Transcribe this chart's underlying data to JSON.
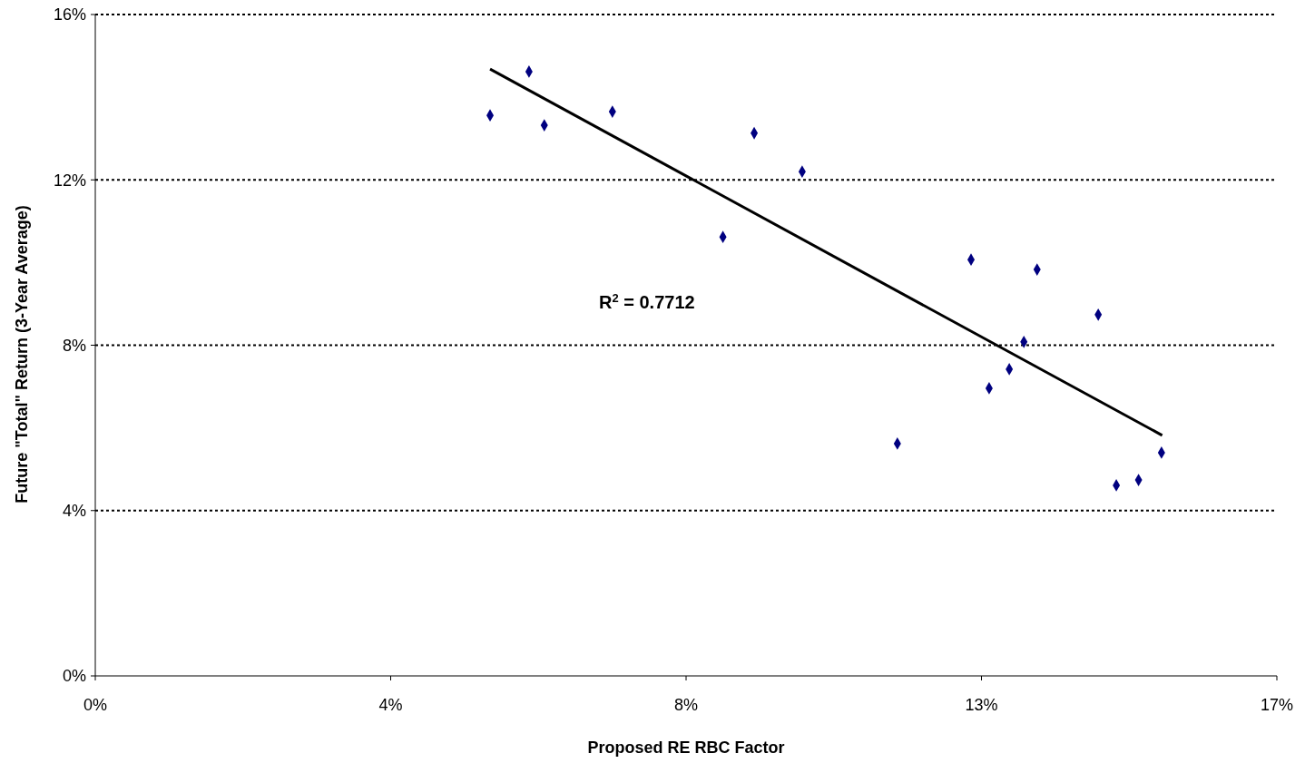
{
  "chart_data": {
    "type": "scatter",
    "xlabel": "Proposed RE RBC Factor",
    "ylabel": "Future \"Total\" Return (3-Year Average)",
    "xlim": [
      0,
      17
    ],
    "xticks": [
      {
        "value": 0,
        "label": "0%"
      },
      {
        "value": 4.25,
        "label": "4%"
      },
      {
        "value": 8.5,
        "label": "8%"
      },
      {
        "value": 12.75,
        "label": "13%"
      },
      {
        "value": 17,
        "label": "17%"
      }
    ],
    "ylim": [
      0,
      16
    ],
    "yticks": [
      {
        "value": 0,
        "label": "0%"
      },
      {
        "value": 4,
        "label": "4%"
      },
      {
        "value": 8,
        "label": "8%"
      },
      {
        "value": 12,
        "label": "12%"
      },
      {
        "value": 16,
        "label": "16%"
      }
    ],
    "grid": "y",
    "marker": "diamond",
    "series": [
      {
        "color": "#000080",
        "x": [
          5.68,
          6.24,
          6.46,
          7.44,
          9.03,
          9.48,
          10.17,
          11.54,
          12.6,
          12.86,
          13.15,
          13.36,
          13.55,
          14.43,
          14.69,
          15.01,
          15.34
        ],
        "values": [
          13.56,
          14.62,
          13.32,
          13.65,
          10.62,
          13.13,
          12.2,
          5.62,
          10.07,
          6.96,
          7.42,
          8.08,
          9.83,
          8.74,
          4.61,
          4.74,
          5.4
        ]
      },
      {
        "type": "line",
        "color": "#000000",
        "marker": "none",
        "line_style": "solid",
        "x": [
          5.68,
          15.35
        ],
        "values": [
          14.68,
          5.82
        ]
      }
    ],
    "annotations": [
      "R$^{2}$ = 0.7712"
    ]
  }
}
